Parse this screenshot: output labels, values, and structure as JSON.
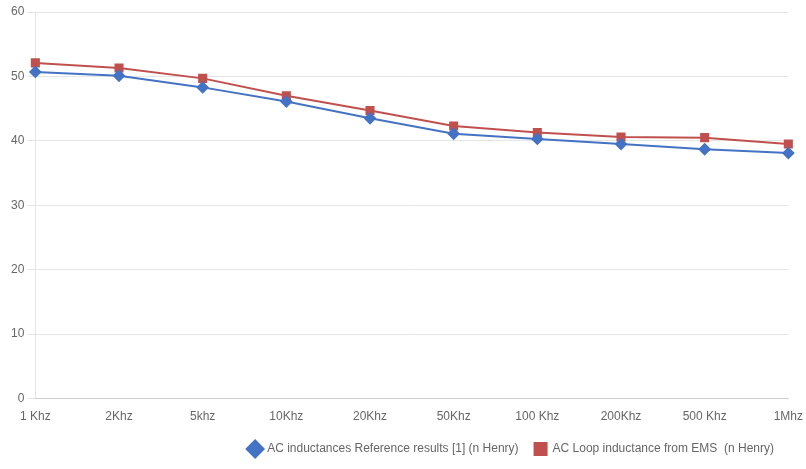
{
  "chart_data": {
    "type": "line",
    "categories": [
      "1 Khz",
      "2Khz",
      "5khz",
      "10Khz",
      "20Khz",
      "50Khz",
      "100 Khz",
      "200Khz",
      "500 Khz",
      "1Mhz"
    ],
    "series": [
      {
        "name": "AC inductances Reference results [1] (n Henry)",
        "color": "#4472C4",
        "marker": "diamond",
        "values": [
          50.7,
          50.1,
          48.3,
          46.1,
          43.5,
          41.1,
          40.3,
          39.5,
          38.7,
          38.1
        ]
      },
      {
        "name": "AC Loop inductance from EMS  (n Henry)",
        "color": "#C0504D",
        "marker": "square",
        "values": [
          52.1,
          51.3,
          49.7,
          47.0,
          44.7,
          42.3,
          41.3,
          40.6,
          40.5,
          39.5
        ]
      }
    ],
    "ylim": [
      0,
      60
    ],
    "yticks": [
      0,
      10,
      20,
      30,
      40,
      50,
      60
    ],
    "grid": true,
    "legend": "lower right"
  }
}
